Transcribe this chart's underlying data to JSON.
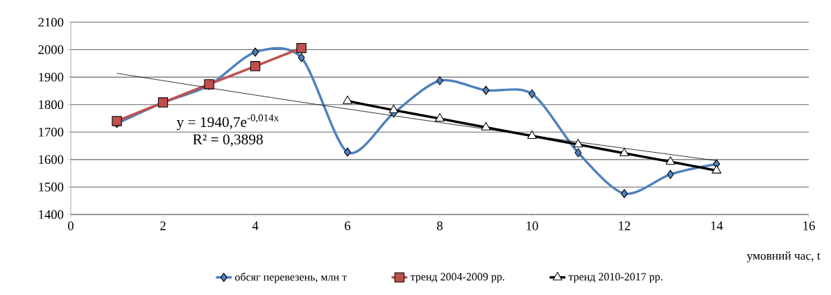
{
  "chart_data": {
    "type": "line",
    "xlabel": "умовний час, t",
    "x": [
      1,
      2,
      3,
      4,
      5,
      6,
      7,
      8,
      9,
      10,
      11,
      12,
      13,
      14
    ],
    "series": [
      {
        "name": "обсяг перевезень, млн т",
        "color": "#4f81bd",
        "marker": "diamond",
        "values": [
          1731,
          1807,
          1870,
          1991,
          1971,
          1627,
          1769,
          1887,
          1852,
          1839,
          1625,
          1476,
          1546,
          1584
        ]
      },
      {
        "name": "тренд 2004-2009 рр.",
        "color": "#c0504d",
        "marker": "square",
        "x": [
          1,
          2,
          3,
          4,
          5
        ],
        "values": [
          1740,
          1808,
          1874,
          1940,
          2006
        ]
      },
      {
        "name": "тренд 2010-2017 рр.",
        "color": "#000000",
        "marker": "triangle",
        "x": [
          6,
          7,
          8,
          9,
          10,
          11,
          12,
          13,
          14
        ],
        "values": [
          1813,
          1780,
          1749,
          1717,
          1686,
          1655,
          1623,
          1592,
          1560
        ]
      },
      {
        "type": "line",
        "color": "#000000",
        "marker": "none",
        "x": [
          1,
          5,
          10,
          14
        ],
        "values": [
          1914,
          1809,
          1687,
          1596
        ]
      }
    ],
    "annotations": [
      "y = 1940,7e$^{-0,014x}$",
      "R² = 0,3898"
    ],
    "xlim": [
      0,
      16
    ],
    "xticks": [
      0,
      2,
      4,
      6,
      8,
      10,
      12,
      14,
      16
    ],
    "ylim": [
      1400,
      2100
    ],
    "yticks": [
      1400,
      1500,
      1600,
      1700,
      1800,
      1900,
      2000,
      2100
    ],
    "grid": "y",
    "legend": "bottom"
  }
}
